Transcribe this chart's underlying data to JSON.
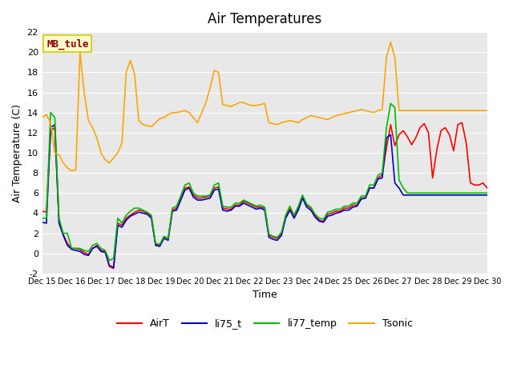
{
  "title": "Air Temperatures",
  "xlabel": "Time",
  "ylabel": "Air Temperature (C)",
  "annotation_text": "MB_tule",
  "annotation_color": "#8B0000",
  "annotation_bg": "#FFFFCC",
  "annotation_border": "#CCCC00",
  "ylim": [
    -2,
    22
  ],
  "xlim": [
    0,
    15
  ],
  "x_tick_labels": [
    "Dec 15",
    "Dec 16",
    "Dec 17",
    "Dec 18",
    "Dec 19",
    "Dec 20",
    "Dec 21",
    "Dec 22",
    "Dec 23",
    "Dec 24",
    "Dec 25",
    "Dec 26",
    "Dec 27",
    "Dec 28",
    "Dec 29",
    "Dec 30"
  ],
  "background_color": "#E8E8E8",
  "grid_color": "#FFFFFF",
  "colors": {
    "AirT": "#FF0000",
    "li75_t": "#0000CC",
    "li77_temp": "#00BB00",
    "Tsonic": "#FFA500"
  },
  "AirT": [
    4.2,
    4.1,
    12.2,
    12.5,
    3.2,
    1.9,
    1.0,
    0.5,
    0.5,
    0.4,
    0.1,
    -0.1,
    0.5,
    0.8,
    0.3,
    0.2,
    -1.3,
    -1.5,
    3.0,
    2.8,
    3.5,
    3.8,
    4.1,
    4.3,
    4.2,
    4.0,
    3.7,
    0.9,
    0.8,
    1.6,
    1.5,
    4.3,
    4.5,
    5.5,
    6.5,
    6.6,
    5.8,
    5.5,
    5.5,
    5.6,
    5.7,
    6.5,
    6.6,
    4.5,
    4.4,
    4.4,
    4.8,
    4.8,
    5.2,
    5.0,
    4.8,
    4.6,
    4.6,
    4.5,
    1.8,
    1.6,
    1.5,
    2.0,
    3.7,
    4.5,
    3.7,
    4.5,
    5.7,
    4.8,
    4.5,
    3.8,
    3.3,
    3.2,
    3.9,
    4.0,
    4.2,
    4.2,
    4.5,
    4.5,
    4.8,
    4.8,
    5.5,
    5.5,
    6.5,
    6.5,
    7.5,
    7.8,
    10.5,
    12.8,
    10.7,
    11.8,
    12.2,
    11.6,
    10.8,
    11.5,
    12.5,
    12.9,
    12.0,
    7.5,
    10.3,
    12.2,
    12.5,
    11.8,
    10.2,
    12.8,
    13.0,
    11.0,
    7.0,
    6.8,
    6.8,
    7.0,
    6.5
  ],
  "li75_t": [
    3.1,
    3.0,
    12.5,
    12.8,
    3.0,
    1.8,
    0.8,
    0.4,
    0.3,
    0.2,
    -0.1,
    -0.2,
    0.5,
    0.7,
    0.2,
    0.1,
    -1.2,
    -1.4,
    2.8,
    2.6,
    3.3,
    3.7,
    3.9,
    4.1,
    4.0,
    3.9,
    3.5,
    0.8,
    0.7,
    1.5,
    1.3,
    4.2,
    4.3,
    5.3,
    6.3,
    6.5,
    5.6,
    5.3,
    5.3,
    5.4,
    5.5,
    6.3,
    6.4,
    4.3,
    4.2,
    4.3,
    4.7,
    4.7,
    5.0,
    4.8,
    4.6,
    4.4,
    4.5,
    4.3,
    1.6,
    1.4,
    1.3,
    1.8,
    3.5,
    4.3,
    3.5,
    4.3,
    5.5,
    4.6,
    4.3,
    3.6,
    3.2,
    3.1,
    3.7,
    3.8,
    4.0,
    4.1,
    4.3,
    4.3,
    4.6,
    4.7,
    5.4,
    5.5,
    6.5,
    6.5,
    7.4,
    7.5,
    11.5,
    11.8,
    7.0,
    6.5,
    5.8,
    5.8,
    5.8,
    5.8,
    5.8,
    5.8,
    5.8,
    5.8,
    5.8,
    5.8,
    5.8,
    5.8,
    5.8,
    5.8,
    5.8,
    5.8,
    5.8,
    5.8,
    5.8,
    5.8,
    5.8
  ],
  "li77_temp": [
    3.5,
    3.5,
    14.0,
    13.5,
    3.5,
    2.0,
    2.0,
    0.5,
    0.5,
    0.5,
    0.3,
    0.2,
    0.8,
    1.0,
    0.5,
    0.3,
    -0.7,
    -0.5,
    3.5,
    3.0,
    3.8,
    4.2,
    4.5,
    4.5,
    4.3,
    4.1,
    3.8,
    1.0,
    0.9,
    1.7,
    1.5,
    4.5,
    4.7,
    5.7,
    6.8,
    7.0,
    6.0,
    5.7,
    5.7,
    5.7,
    5.8,
    6.8,
    7.0,
    4.7,
    4.6,
    4.6,
    5.0,
    5.0,
    5.3,
    5.1,
    4.9,
    4.7,
    4.8,
    4.6,
    1.9,
    1.7,
    1.6,
    2.1,
    3.8,
    4.7,
    3.8,
    4.7,
    5.8,
    4.9,
    4.6,
    3.9,
    3.5,
    3.4,
    4.1,
    4.2,
    4.4,
    4.4,
    4.7,
    4.7,
    5.0,
    5.0,
    5.7,
    5.7,
    6.8,
    6.8,
    7.8,
    8.0,
    12.5,
    14.9,
    14.5,
    7.3,
    6.5,
    6.0,
    6.0,
    6.0,
    6.0,
    6.0,
    6.0,
    6.0,
    6.0,
    6.0,
    6.0,
    6.0,
    6.0,
    6.0,
    6.0,
    6.0,
    6.0,
    6.0,
    6.0,
    6.0,
    6.0
  ],
  "Tsonic": [
    13.5,
    13.8,
    13.0,
    10.0,
    9.8,
    9.0,
    8.5,
    8.2,
    8.3,
    20.0,
    16.0,
    13.2,
    12.5,
    11.5,
    10.0,
    9.3,
    9.0,
    9.5,
    10.0,
    11.0,
    18.0,
    19.2,
    17.8,
    13.2,
    12.8,
    12.7,
    12.6,
    13.0,
    13.4,
    13.5,
    13.8,
    14.0,
    14.0,
    14.1,
    14.2,
    14.0,
    13.5,
    13.0,
    14.0,
    15.0,
    16.5,
    18.2,
    18.0,
    14.8,
    14.7,
    14.6,
    14.8,
    15.0,
    15.0,
    14.8,
    14.7,
    14.7,
    14.8,
    14.9,
    13.0,
    12.9,
    12.8,
    13.0,
    13.1,
    13.2,
    13.1,
    13.0,
    13.3,
    13.5,
    13.7,
    13.6,
    13.5,
    13.4,
    13.3,
    13.5,
    13.7,
    13.8,
    13.9,
    14.0,
    14.1,
    14.2,
    14.3,
    14.2,
    14.1,
    14.0,
    14.2,
    14.3,
    19.5,
    21.0,
    19.5,
    14.2,
    14.2,
    14.2,
    14.2,
    14.2,
    14.2,
    14.2,
    14.2,
    14.2,
    14.2,
    14.2,
    14.2,
    14.2,
    14.2,
    14.2,
    14.2,
    14.2,
    14.2,
    14.2,
    14.2,
    14.2,
    14.2
  ]
}
